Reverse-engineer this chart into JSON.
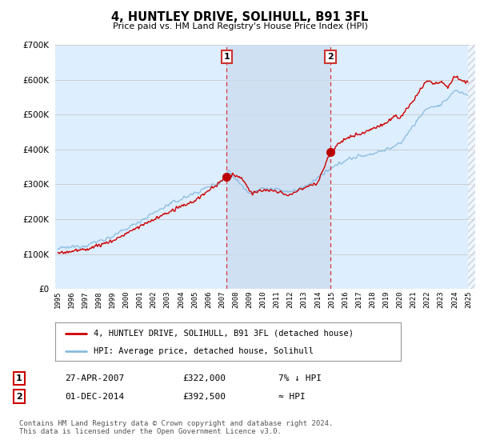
{
  "title": "4, HUNTLEY DRIVE, SOLIHULL, B91 3FL",
  "subtitle": "Price paid vs. HM Land Registry's House Price Index (HPI)",
  "background_color": "#ffffff",
  "plot_bg_color": "#ddeeff",
  "grid_color": "#cccccc",
  "hpi_line_color": "#88bbdd",
  "price_line_color": "#cc0000",
  "sale1_date": "27-APR-2007",
  "sale1_price": "£322,000",
  "sale1_hpi": "7% ↓ HPI",
  "sale2_date": "01-DEC-2014",
  "sale2_price": "£392,500",
  "sale2_hpi": "≈ HPI",
  "ylim": [
    0,
    700000
  ],
  "yticks": [
    0,
    100000,
    200000,
    300000,
    400000,
    500000,
    600000,
    700000
  ],
  "xlabel_years": [
    "1995",
    "1996",
    "1997",
    "1998",
    "1999",
    "2000",
    "2001",
    "2002",
    "2003",
    "2004",
    "2005",
    "2006",
    "2007",
    "2008",
    "2009",
    "2010",
    "2011",
    "2012",
    "2013",
    "2014",
    "2015",
    "2016",
    "2017",
    "2018",
    "2019",
    "2020",
    "2021",
    "2022",
    "2023",
    "2024",
    "2025"
  ],
  "sale1_x": 2007.33,
  "sale2_x": 2014.92,
  "footnote": "Contains HM Land Registry data © Crown copyright and database right 2024.\nThis data is licensed under the Open Government Licence v3.0."
}
